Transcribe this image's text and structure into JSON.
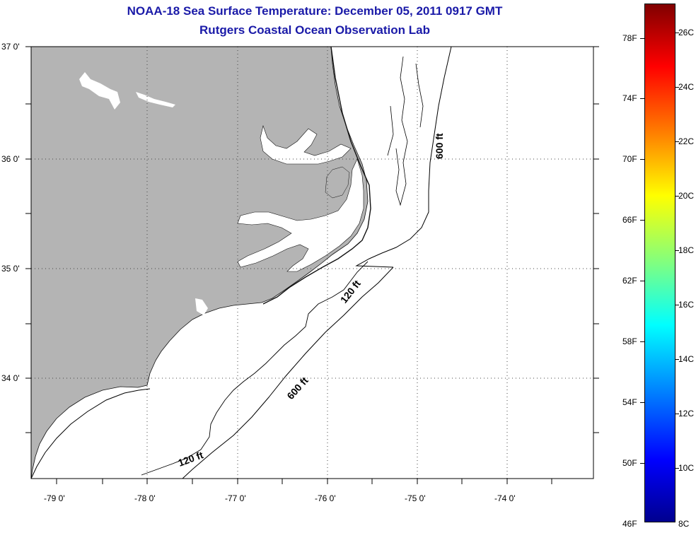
{
  "title": {
    "line1": "NOAA-18 Sea Surface Temperature:  December 05, 2011 0917 GMT",
    "line2": "Rutgers Coastal Ocean Observation Lab"
  },
  "map": {
    "lat_labels": [
      "37 0'",
      "36 0'",
      "35 0'",
      "34 0'"
    ],
    "lon_labels": [
      "-79 0'",
      "-78 0'",
      "-77 0'",
      "-76 0'",
      "-75 0'",
      "-74 0'"
    ],
    "contour_labels": {
      "c600_north": "600 ft",
      "c120_mid": "120 ft",
      "c600_south": "600 ft",
      "c120_south": "120 ft"
    },
    "land_color": "#b4b4b4",
    "grid": "dotted"
  },
  "colorbar": {
    "fahrenheit_labels": [
      "78F",
      "74F",
      "70F",
      "66F",
      "62F",
      "58F",
      "54F",
      "50F",
      "46F"
    ],
    "celsius_labels": [
      "26C",
      "24C",
      "22C",
      "20C",
      "18C",
      "16C",
      "14C",
      "12C",
      "10C",
      "8C"
    ],
    "colormap": "jet"
  }
}
